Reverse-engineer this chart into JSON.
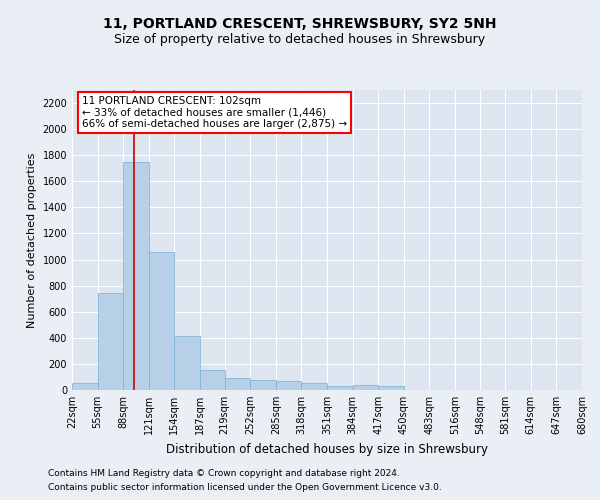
{
  "title1": "11, PORTLAND CRESCENT, SHREWSBURY, SY2 5NH",
  "title2": "Size of property relative to detached houses in Shrewsbury",
  "xlabel": "Distribution of detached houses by size in Shrewsbury",
  "ylabel": "Number of detached properties",
  "footnote1": "Contains HM Land Registry data © Crown copyright and database right 2024.",
  "footnote2": "Contains public sector information licensed under the Open Government Licence v3.0.",
  "annotation_line1": "11 PORTLAND CRESCENT: 102sqm",
  "annotation_line2": "← 33% of detached houses are smaller (1,446)",
  "annotation_line3": "66% of semi-detached houses are larger (2,875) →",
  "bar_color": "#b8cfe8",
  "bar_edge_color": "#7aafd4",
  "vline_color": "#cc0000",
  "vline_x": 102,
  "bin_edges": [
    22,
    55,
    88,
    121,
    154,
    187,
    219,
    252,
    285,
    318,
    351,
    384,
    417,
    450,
    483,
    516,
    548,
    581,
    614,
    647,
    680
  ],
  "bin_counts": [
    50,
    740,
    1750,
    1060,
    415,
    150,
    95,
    80,
    70,
    50,
    30,
    40,
    30,
    0,
    0,
    0,
    0,
    0,
    0,
    0
  ],
  "ylim": [
    0,
    2300
  ],
  "yticks": [
    0,
    200,
    400,
    600,
    800,
    1000,
    1200,
    1400,
    1600,
    1800,
    2000,
    2200
  ],
  "background_color": "#eaeef5",
  "plot_bg_color": "#dce5f0",
  "grid_color": "#ffffff",
  "title_fontsize": 10,
  "subtitle_fontsize": 9,
  "ylabel_fontsize": 8,
  "xlabel_fontsize": 8.5,
  "tick_fontsize": 7,
  "footnote_fontsize": 6.5,
  "annot_fontsize": 7.5
}
